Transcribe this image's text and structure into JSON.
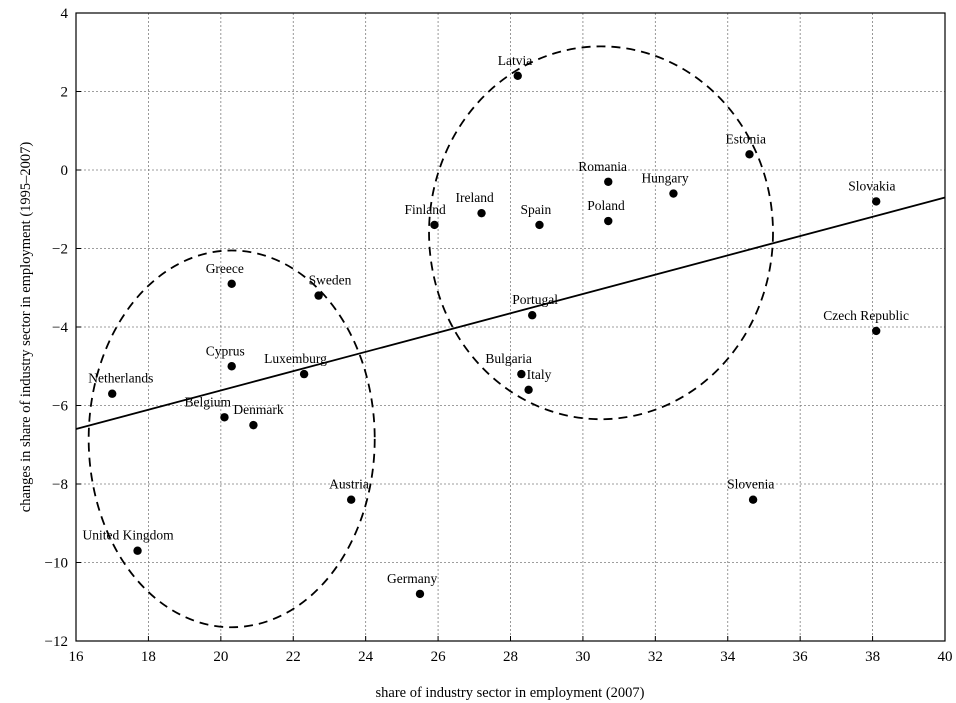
{
  "chart_data": {
    "type": "scatter",
    "xlabel": "share of industry sector in employment (2007)",
    "ylabel": "changes in share of industry sector in employment (1995–2007)",
    "xlim": [
      16,
      40
    ],
    "ylim": [
      -12,
      4
    ],
    "xticks": [
      16,
      18,
      20,
      22,
      24,
      26,
      28,
      30,
      32,
      34,
      36,
      38,
      40
    ],
    "yticks": [
      4,
      2,
      0,
      -2,
      -4,
      -6,
      -8,
      -10,
      -12
    ],
    "grid": true,
    "points": [
      {
        "label": "Netherlands",
        "x": 17.0,
        "y": -5.7
      },
      {
        "label": "United Kingdom",
        "x": 17.7,
        "y": -9.7
      },
      {
        "label": "Belgium",
        "x": 20.1,
        "y": -6.3
      },
      {
        "label": "Greece",
        "x": 20.3,
        "y": -2.9
      },
      {
        "label": "Cyprus",
        "x": 20.3,
        "y": -5.0
      },
      {
        "label": "Denmark",
        "x": 20.9,
        "y": -6.5
      },
      {
        "label": "Luxemburg",
        "x": 22.3,
        "y": -5.2
      },
      {
        "label": "Sweden",
        "x": 22.7,
        "y": -3.2
      },
      {
        "label": "Austria",
        "x": 23.6,
        "y": -8.4
      },
      {
        "label": "Germany",
        "x": 25.5,
        "y": -10.8
      },
      {
        "label": "Finland",
        "x": 25.9,
        "y": -1.4
      },
      {
        "label": "Ireland",
        "x": 27.2,
        "y": -1.1
      },
      {
        "label": "Latvia",
        "x": 28.2,
        "y": 2.4
      },
      {
        "label": "Bulgaria",
        "x": 28.3,
        "y": -5.2
      },
      {
        "label": "Italy",
        "x": 28.5,
        "y": -5.6
      },
      {
        "label": "Portugal",
        "x": 28.6,
        "y": -3.7
      },
      {
        "label": "Spain",
        "x": 28.8,
        "y": -1.4
      },
      {
        "label": "Romania",
        "x": 30.7,
        "y": -0.3
      },
      {
        "label": "Poland",
        "x": 30.7,
        "y": -1.3
      },
      {
        "label": "Hungary",
        "x": 32.5,
        "y": -0.6
      },
      {
        "label": "Estonia",
        "x": 34.6,
        "y": 0.4
      },
      {
        "label": "Slovenia",
        "x": 34.7,
        "y": -8.4
      },
      {
        "label": "Slovakia",
        "x": 38.1,
        "y": -0.8
      },
      {
        "label": "Czech Republic",
        "x": 38.1,
        "y": -4.1
      }
    ],
    "trend_line": {
      "x": [
        16,
        40
      ],
      "y": [
        -6.6,
        -0.7
      ]
    },
    "clusters": [
      {
        "center_x": 20.3,
        "center_y": -6.85,
        "radius_x": 3.95,
        "radius_y": 4.8
      },
      {
        "center_x": 30.5,
        "center_y": -1.6,
        "radius_x": 4.75,
        "radius_y": 4.75
      }
    ]
  }
}
